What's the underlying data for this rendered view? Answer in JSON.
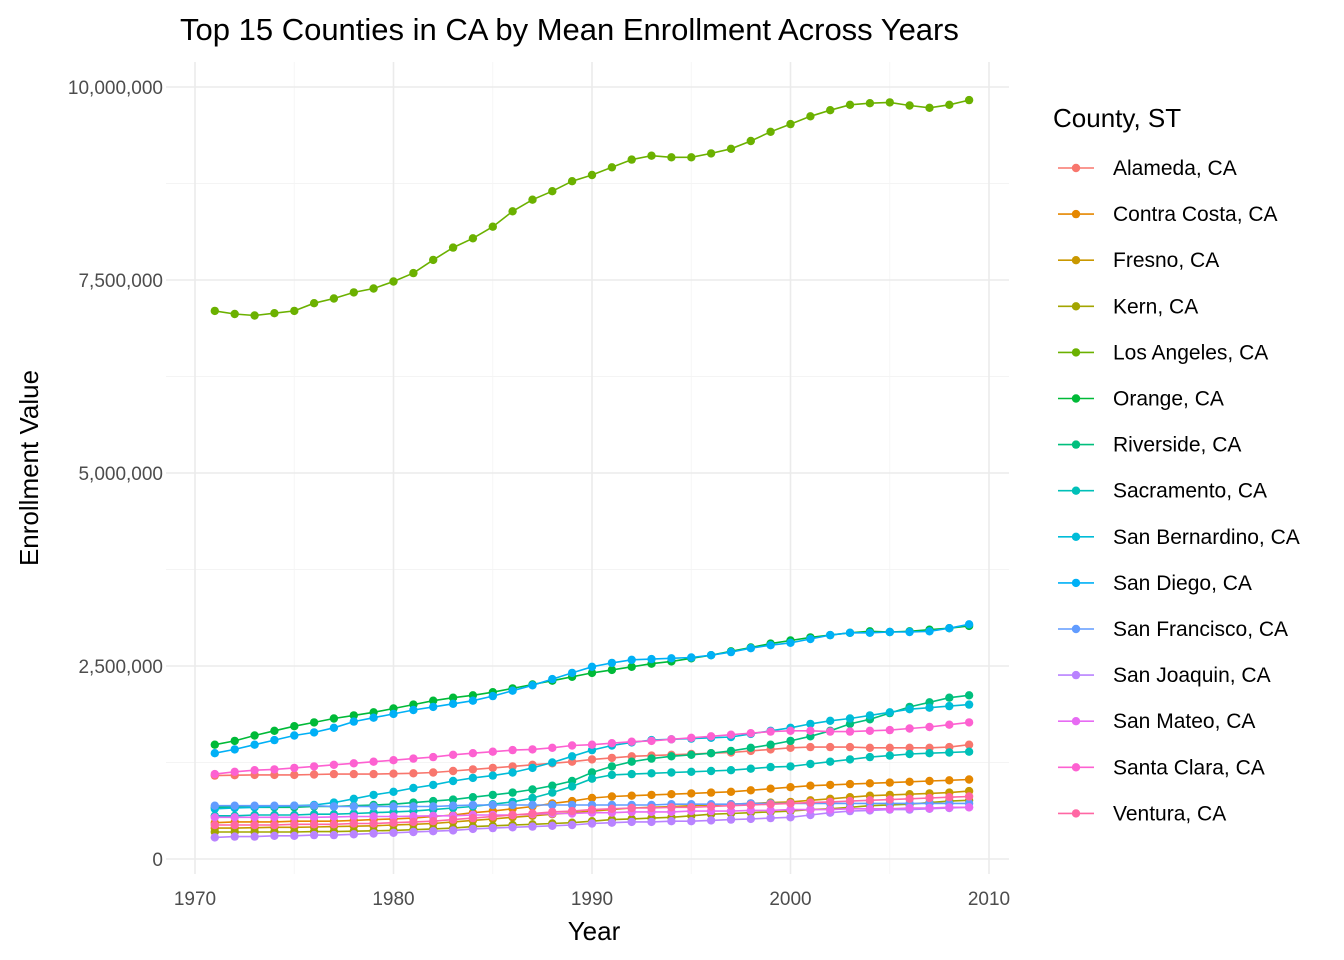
{
  "chart_data": {
    "type": "line",
    "title": "Top 15 Counties in CA by Mean Enrollment Across Years",
    "xlabel": "Year",
    "ylabel": "Enrollment Value",
    "legend_title": "County, ST",
    "legend_position": "right",
    "grid": true,
    "xlim": [
      1970,
      2010
    ],
    "ylim": [
      0,
      10000000
    ],
    "x_ticks": [
      1970,
      1980,
      1990,
      2000,
      2010
    ],
    "x_tick_labels": [
      "1970",
      "1980",
      "1990",
      "2000",
      "2010"
    ],
    "y_ticks": [
      0,
      2500000,
      5000000,
      7500000,
      10000000
    ],
    "y_tick_labels": [
      "0",
      "2,500,000",
      "5,000,000",
      "7,500,000",
      "10,000,000"
    ],
    "x": [
      1971,
      1972,
      1973,
      1974,
      1975,
      1976,
      1977,
      1978,
      1979,
      1980,
      1981,
      1982,
      1983,
      1984,
      1985,
      1986,
      1987,
      1988,
      1989,
      1990,
      1991,
      1992,
      1993,
      1994,
      1995,
      1996,
      1997,
      1998,
      1999,
      2000,
      2001,
      2002,
      2003,
      2004,
      2005,
      2006,
      2007,
      2008,
      2009
    ],
    "series": [
      {
        "name": "Alameda, CA",
        "color": "#F8766D",
        "values": [
          1080000,
          1085000,
          1090000,
          1090000,
          1090000,
          1095000,
          1100000,
          1100000,
          1100000,
          1105000,
          1110000,
          1120000,
          1140000,
          1160000,
          1180000,
          1200000,
          1220000,
          1240000,
          1260000,
          1290000,
          1310000,
          1330000,
          1340000,
          1350000,
          1360000,
          1370000,
          1380000,
          1400000,
          1420000,
          1440000,
          1450000,
          1450000,
          1450000,
          1440000,
          1440000,
          1440000,
          1440000,
          1450000,
          1480000
        ]
      },
      {
        "name": "Contra Costa, CA",
        "color": "#E58700",
        "values": [
          470000,
          480000,
          480000,
          480000,
          490000,
          490000,
          490000,
          500000,
          510000,
          520000,
          530000,
          550000,
          570000,
          600000,
          620000,
          650000,
          680000,
          720000,
          750000,
          790000,
          810000,
          820000,
          830000,
          840000,
          850000,
          860000,
          870000,
          890000,
          910000,
          930000,
          950000,
          960000,
          970000,
          980000,
          990000,
          1000000,
          1010000,
          1020000,
          1030000
        ]
      },
      {
        "name": "Fresno, CA",
        "color": "#C99800",
        "values": [
          400000,
          400000,
          405000,
          410000,
          410000,
          415000,
          420000,
          425000,
          430000,
          440000,
          450000,
          460000,
          480000,
          500000,
          520000,
          540000,
          560000,
          580000,
          600000,
          620000,
          640000,
          660000,
          670000,
          680000,
          690000,
          700000,
          710000,
          720000,
          730000,
          740000,
          760000,
          780000,
          800000,
          820000,
          830000,
          840000,
          850000,
          860000,
          880000
        ]
      },
      {
        "name": "Kern, CA",
        "color": "#A3A500",
        "values": [
          350000,
          350000,
          350000,
          350000,
          350000,
          355000,
          355000,
          360000,
          365000,
          370000,
          380000,
          390000,
          400000,
          420000,
          430000,
          440000,
          450000,
          460000,
          470000,
          490000,
          510000,
          520000,
          530000,
          540000,
          560000,
          580000,
          590000,
          600000,
          610000,
          620000,
          640000,
          650000,
          670000,
          690000,
          700000,
          710000,
          730000,
          750000,
          760000
        ]
      },
      {
        "name": "Los Angeles, CA",
        "color": "#6BB100",
        "values": [
          7100000,
          7060000,
          7040000,
          7070000,
          7100000,
          7200000,
          7260000,
          7340000,
          7390000,
          7480000,
          7590000,
          7760000,
          7920000,
          8040000,
          8190000,
          8390000,
          8540000,
          8650000,
          8780000,
          8860000,
          8960000,
          9060000,
          9110000,
          9090000,
          9090000,
          9140000,
          9200000,
          9300000,
          9420000,
          9520000,
          9620000,
          9700000,
          9770000,
          9790000,
          9800000,
          9760000,
          9730000,
          9770000,
          9830000
        ]
      },
      {
        "name": "Orange, CA",
        "color": "#00BA38",
        "values": [
          1480000,
          1530000,
          1600000,
          1660000,
          1720000,
          1770000,
          1820000,
          1860000,
          1900000,
          1950000,
          2000000,
          2050000,
          2090000,
          2120000,
          2160000,
          2210000,
          2260000,
          2310000,
          2360000,
          2410000,
          2450000,
          2490000,
          2530000,
          2560000,
          2600000,
          2640000,
          2690000,
          2740000,
          2790000,
          2830000,
          2870000,
          2900000,
          2930000,
          2950000,
          2940000,
          2950000,
          2970000,
          2990000,
          3020000
        ]
      },
      {
        "name": "Riverside, CA",
        "color": "#00BF7D",
        "values": [
          670000,
          670000,
          670000,
          670000,
          670000,
          680000,
          680000,
          690000,
          700000,
          710000,
          730000,
          750000,
          770000,
          800000,
          830000,
          860000,
          900000,
          950000,
          1010000,
          1120000,
          1200000,
          1260000,
          1300000,
          1330000,
          1350000,
          1370000,
          1400000,
          1440000,
          1480000,
          1530000,
          1590000,
          1660000,
          1750000,
          1810000,
          1890000,
          1970000,
          2030000,
          2090000,
          2120000
        ]
      },
      {
        "name": "Sacramento, CA",
        "color": "#00C0B8",
        "values": [
          560000,
          560000,
          570000,
          570000,
          570000,
          580000,
          580000,
          590000,
          600000,
          610000,
          620000,
          640000,
          660000,
          680000,
          710000,
          740000,
          790000,
          860000,
          940000,
          1040000,
          1090000,
          1100000,
          1110000,
          1120000,
          1130000,
          1140000,
          1150000,
          1170000,
          1190000,
          1200000,
          1230000,
          1260000,
          1290000,
          1320000,
          1340000,
          1360000,
          1370000,
          1380000,
          1390000
        ]
      },
      {
        "name": "San Bernardino, CA",
        "color": "#00BCD8",
        "values": [
          650000,
          660000,
          670000,
          680000,
          690000,
          700000,
          730000,
          780000,
          830000,
          870000,
          920000,
          960000,
          1010000,
          1050000,
          1080000,
          1120000,
          1180000,
          1250000,
          1330000,
          1410000,
          1470000,
          1510000,
          1540000,
          1550000,
          1560000,
          1570000,
          1580000,
          1620000,
          1660000,
          1700000,
          1750000,
          1790000,
          1820000,
          1860000,
          1900000,
          1940000,
          1960000,
          1980000,
          2000000
        ]
      },
      {
        "name": "San Diego, CA",
        "color": "#00B0F6",
        "values": [
          1370000,
          1420000,
          1480000,
          1540000,
          1600000,
          1640000,
          1700000,
          1780000,
          1830000,
          1880000,
          1930000,
          1970000,
          2010000,
          2050000,
          2110000,
          2180000,
          2250000,
          2330000,
          2410000,
          2490000,
          2540000,
          2580000,
          2590000,
          2600000,
          2610000,
          2640000,
          2680000,
          2730000,
          2770000,
          2800000,
          2850000,
          2900000,
          2930000,
          2930000,
          2940000,
          2940000,
          2950000,
          2990000,
          3040000
        ]
      },
      {
        "name": "San Francisco, CA",
        "color": "#619CFF",
        "values": [
          690000,
          690000,
          690000,
          690000,
          690000,
          690000,
          680000,
          680000,
          680000,
          680000,
          680000,
          680000,
          690000,
          700000,
          700000,
          700000,
          700000,
          700000,
          700000,
          700000,
          700000,
          700000,
          700000,
          710000,
          710000,
          710000,
          710000,
          720000,
          720000,
          720000,
          720000,
          720000,
          720000,
          720000,
          720000,
          720000,
          720000,
          720000,
          720000
        ]
      },
      {
        "name": "San Joaquin, CA",
        "color": "#B983FF",
        "values": [
          280000,
          290000,
          290000,
          300000,
          300000,
          310000,
          310000,
          320000,
          330000,
          340000,
          350000,
          360000,
          370000,
          390000,
          400000,
          410000,
          420000,
          430000,
          440000,
          460000,
          470000,
          480000,
          480000,
          490000,
          490000,
          500000,
          510000,
          520000,
          530000,
          540000,
          570000,
          600000,
          620000,
          630000,
          640000,
          640000,
          650000,
          660000,
          670000
        ]
      },
      {
        "name": "San Mateo, CA",
        "color": "#E76BF3",
        "values": [
          540000,
          540000,
          540000,
          540000,
          540000,
          540000,
          545000,
          550000,
          550000,
          550000,
          555000,
          560000,
          560000,
          570000,
          570000,
          570000,
          580000,
          590000,
          590000,
          600000,
          600000,
          610000,
          610000,
          610000,
          620000,
          620000,
          620000,
          630000,
          630000,
          640000,
          640000,
          640000,
          650000,
          650000,
          650000,
          660000,
          660000,
          670000,
          670000
        ]
      },
      {
        "name": "Santa Clara, CA",
        "color": "#FD61D1",
        "values": [
          1100000,
          1130000,
          1150000,
          1160000,
          1180000,
          1200000,
          1220000,
          1240000,
          1260000,
          1280000,
          1300000,
          1320000,
          1350000,
          1370000,
          1390000,
          1410000,
          1420000,
          1440000,
          1470000,
          1480000,
          1500000,
          1520000,
          1530000,
          1550000,
          1570000,
          1590000,
          1610000,
          1630000,
          1650000,
          1660000,
          1660000,
          1650000,
          1650000,
          1660000,
          1670000,
          1690000,
          1710000,
          1740000,
          1770000
        ]
      },
      {
        "name": "Ventura, CA",
        "color": "#FF67A4",
        "values": [
          440000,
          440000,
          440000,
          440000,
          450000,
          450000,
          450000,
          460000,
          460000,
          470000,
          480000,
          490000,
          510000,
          530000,
          550000,
          570000,
          590000,
          610000,
          620000,
          640000,
          650000,
          660000,
          660000,
          670000,
          670000,
          680000,
          690000,
          700000,
          710000,
          720000,
          730000,
          740000,
          750000,
          760000,
          770000,
          780000,
          790000,
          800000,
          810000
        ]
      }
    ]
  }
}
